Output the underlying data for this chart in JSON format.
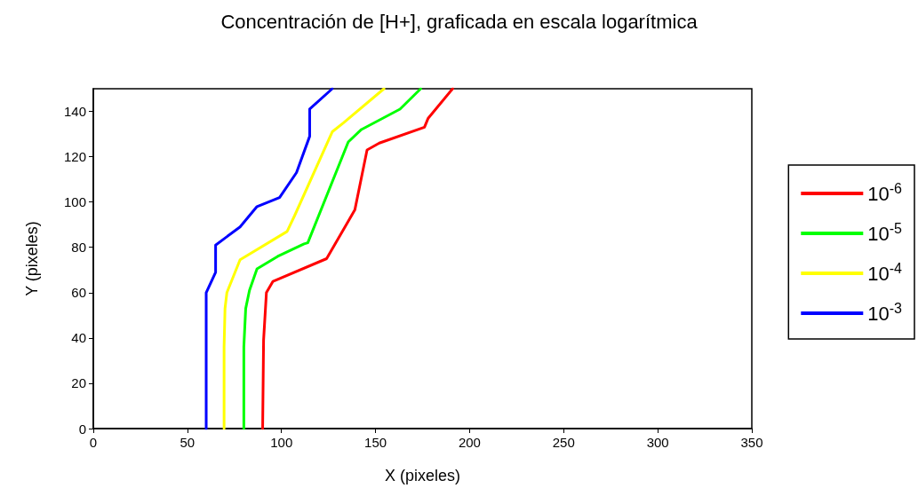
{
  "chart_data": {
    "type": "line",
    "title": "Concentración de [H+], graficada en escala logarítmica",
    "xlabel": "X (pixeles)",
    "ylabel": "Y (pixeles)",
    "xlim": [
      0,
      350
    ],
    "xticks": [
      0,
      50,
      100,
      150,
      200,
      250,
      300,
      350
    ],
    "ylim": [
      0,
      150
    ],
    "yticks": [
      0,
      20,
      40,
      60,
      80,
      100,
      120,
      140
    ],
    "grid": false,
    "legend": "right",
    "marker": "none",
    "line_style": "solid",
    "series": [
      {
        "name": "10$^{-6}$",
        "color": "#ff0000",
        "x": [
          90,
          90.5,
          92,
          95.5,
          124,
          139,
          145.5,
          152,
          176,
          178,
          191
        ],
        "values": [
          0,
          39,
          60,
          65,
          75,
          96.5,
          123,
          126,
          133,
          137,
          150
        ]
      },
      {
        "name": "10$^{-5}$",
        "color": "#00ff00",
        "x": [
          80,
          80,
          81,
          83,
          87,
          98,
          112,
          114,
          135.5,
          142.5,
          163,
          174
        ],
        "values": [
          0,
          36,
          53,
          61,
          70.5,
          76,
          81.5,
          82,
          126.5,
          132,
          141,
          150
        ]
      },
      {
        "name": "10$^{-4}$",
        "color": "#ffff00",
        "x": [
          69.5,
          69.5,
          70,
          71,
          78,
          103,
          107,
          127,
          133,
          154.5
        ],
        "values": [
          0,
          36,
          53,
          60,
          74.5,
          87,
          94,
          131,
          135,
          150
        ]
      },
      {
        "name": "10$^{-3}$",
        "color": "#0000ff",
        "x": [
          60,
          60,
          65,
          65,
          78,
          87,
          99,
          108,
          115,
          115,
          127
        ],
        "values": [
          0,
          60,
          69,
          81,
          89,
          98,
          102,
          113,
          129,
          141,
          150
        ]
      }
    ]
  }
}
